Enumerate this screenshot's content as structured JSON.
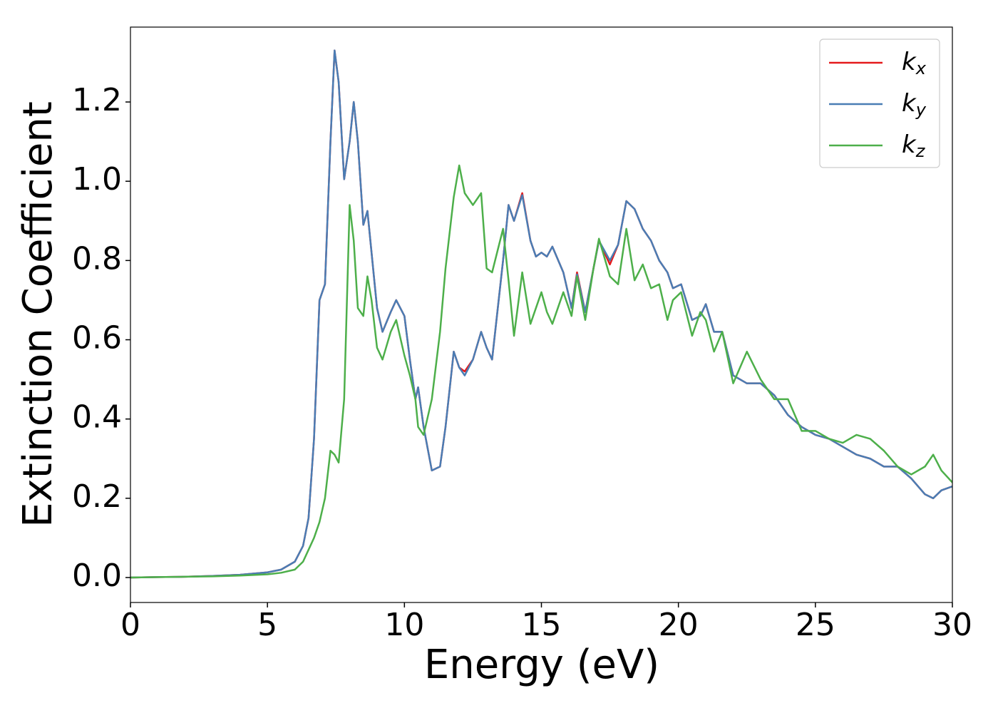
{
  "chart_data": {
    "type": "line",
    "xlabel": "Energy (eV)",
    "ylabel": "Extinction Coefficient",
    "x": [
      0,
      1,
      2,
      3,
      4,
      5,
      5.5,
      6,
      6.3,
      6.5,
      6.7,
      6.9,
      7.0,
      7.1,
      7.3,
      7.45,
      7.6,
      7.8,
      8.0,
      8.15,
      8.3,
      8.5,
      8.65,
      8.8,
      9.0,
      9.2,
      9.5,
      9.7,
      10.0,
      10.2,
      10.4,
      10.5,
      10.7,
      11.0,
      11.3,
      11.5,
      11.8,
      12.0,
      12.2,
      12.5,
      12.8,
      13.0,
      13.2,
      13.6,
      13.8,
      14.0,
      14.3,
      14.6,
      14.8,
      15.0,
      15.2,
      15.4,
      15.8,
      16.1,
      16.3,
      16.6,
      16.9,
      17.1,
      17.5,
      17.8,
      18.1,
      18.4,
      18.7,
      19.0,
      19.3,
      19.6,
      19.8,
      20.1,
      20.5,
      20.8,
      21.0,
      21.3,
      21.6,
      22.0,
      22.5,
      23.0,
      23.5,
      24.0,
      24.5,
      25.0,
      25.5,
      26.0,
      26.5,
      27.0,
      27.5,
      28.0,
      28.5,
      29.0,
      29.3,
      29.6,
      30
    ],
    "series": [
      {
        "name": "kx",
        "color": "#e41a1c",
        "values": [
          0,
          0.001,
          0.002,
          0.004,
          0.007,
          0.013,
          0.02,
          0.04,
          0.08,
          0.15,
          0.35,
          0.7,
          0.72,
          0.74,
          1.1,
          1.33,
          1.25,
          1.005,
          1.1,
          1.2,
          1.1,
          0.89,
          0.925,
          0.82,
          0.68,
          0.62,
          0.67,
          0.7,
          0.66,
          0.55,
          0.45,
          0.48,
          0.38,
          0.27,
          0.28,
          0.38,
          0.57,
          0.53,
          0.52,
          0.55,
          0.62,
          0.58,
          0.55,
          0.8,
          0.94,
          0.9,
          0.97,
          0.85,
          0.81,
          0.82,
          0.81,
          0.835,
          0.77,
          0.68,
          0.77,
          0.67,
          0.78,
          0.85,
          0.79,
          0.84,
          0.95,
          0.93,
          0.88,
          0.85,
          0.8,
          0.77,
          0.73,
          0.74,
          0.65,
          0.66,
          0.69,
          0.62,
          0.62,
          0.51,
          0.49,
          0.49,
          0.46,
          0.41,
          0.38,
          0.36,
          0.35,
          0.33,
          0.31,
          0.3,
          0.28,
          0.28,
          0.25,
          0.21,
          0.2,
          0.22,
          0.23
        ]
      },
      {
        "name": "ky",
        "color": "#4a7db4",
        "values": [
          0,
          0.001,
          0.002,
          0.004,
          0.007,
          0.013,
          0.02,
          0.04,
          0.08,
          0.15,
          0.35,
          0.7,
          0.72,
          0.74,
          1.1,
          1.33,
          1.25,
          1.005,
          1.1,
          1.2,
          1.1,
          0.89,
          0.925,
          0.82,
          0.68,
          0.62,
          0.67,
          0.7,
          0.66,
          0.55,
          0.45,
          0.48,
          0.38,
          0.27,
          0.28,
          0.38,
          0.57,
          0.53,
          0.51,
          0.55,
          0.62,
          0.58,
          0.55,
          0.8,
          0.94,
          0.9,
          0.965,
          0.85,
          0.81,
          0.82,
          0.81,
          0.835,
          0.77,
          0.68,
          0.765,
          0.67,
          0.78,
          0.85,
          0.8,
          0.84,
          0.95,
          0.93,
          0.88,
          0.85,
          0.8,
          0.77,
          0.73,
          0.74,
          0.65,
          0.66,
          0.69,
          0.62,
          0.62,
          0.51,
          0.49,
          0.49,
          0.46,
          0.41,
          0.38,
          0.36,
          0.35,
          0.33,
          0.31,
          0.3,
          0.28,
          0.28,
          0.25,
          0.21,
          0.2,
          0.22,
          0.23
        ]
      },
      {
        "name": "kz",
        "color": "#4daf4a",
        "values": [
          0,
          0.001,
          0.002,
          0.003,
          0.005,
          0.008,
          0.012,
          0.02,
          0.04,
          0.07,
          0.1,
          0.14,
          0.17,
          0.2,
          0.32,
          0.31,
          0.29,
          0.45,
          0.94,
          0.85,
          0.68,
          0.66,
          0.76,
          0.7,
          0.58,
          0.55,
          0.62,
          0.65,
          0.56,
          0.51,
          0.45,
          0.38,
          0.36,
          0.45,
          0.62,
          0.78,
          0.96,
          1.04,
          0.97,
          0.94,
          0.97,
          0.78,
          0.77,
          0.88,
          0.75,
          0.61,
          0.77,
          0.64,
          0.68,
          0.72,
          0.67,
          0.64,
          0.72,
          0.66,
          0.76,
          0.65,
          0.78,
          0.855,
          0.76,
          0.74,
          0.88,
          0.75,
          0.79,
          0.73,
          0.74,
          0.65,
          0.7,
          0.72,
          0.61,
          0.67,
          0.65,
          0.57,
          0.62,
          0.49,
          0.57,
          0.5,
          0.45,
          0.45,
          0.37,
          0.37,
          0.35,
          0.34,
          0.36,
          0.35,
          0.32,
          0.28,
          0.26,
          0.28,
          0.31,
          0.27,
          0.24
        ]
      }
    ],
    "xlim": [
      0,
      30
    ],
    "xticks": [
      0,
      5,
      10,
      15,
      20,
      25,
      30
    ],
    "ylim": [
      -0.063,
      1.389
    ],
    "yticks": [
      {
        "value": 0,
        "label": "0.0"
      },
      0.2,
      0.4,
      0.6,
      0.8,
      {
        "value": 1,
        "label": "1.0"
      },
      1.2
    ],
    "grid": false,
    "legend": "upper right"
  }
}
